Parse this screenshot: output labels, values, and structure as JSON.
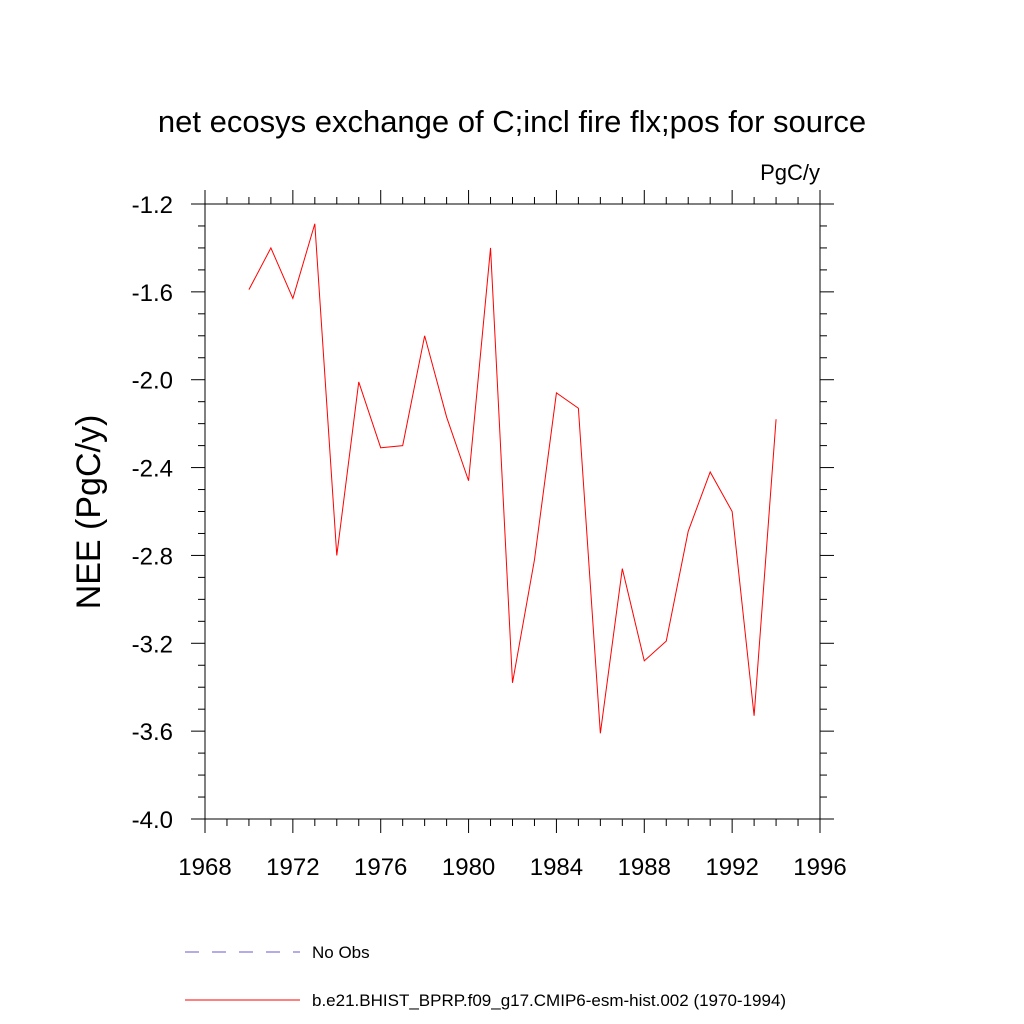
{
  "chart_data": {
    "type": "line",
    "title": "net ecosys exchange of C;incl fire flx;pos for source",
    "units": "PgC/y",
    "ylabel": "NEE  (PgC/y)",
    "xlabel": "",
    "xlim": [
      1968,
      1996
    ],
    "ylim": [
      -4.0,
      -1.2
    ],
    "xticks": [
      1968,
      1972,
      1976,
      1980,
      1984,
      1988,
      1992,
      1996
    ],
    "xtick_labels": [
      "1968",
      "1972",
      "1976",
      "1980",
      "1984",
      "1988",
      "1992",
      "1996"
    ],
    "yticks": [
      -4.0,
      -3.6,
      -3.2,
      -2.8,
      -2.4,
      -2.0,
      -1.6,
      -1.2
    ],
    "ytick_labels": [
      "-4.0",
      "-3.6",
      "-3.2",
      "-2.8",
      "-2.4",
      "-2.0",
      "-1.6",
      "-1.2"
    ],
    "grid": false,
    "series": [
      {
        "name": "b.e21.BHIST_BPRP.f09_g17.CMIP6-esm-hist.002 (1970-1994)",
        "color": "#ff0000",
        "style": "solid",
        "x": [
          1970,
          1971,
          1972,
          1973,
          1974,
          1975,
          1976,
          1977,
          1978,
          1979,
          1980,
          1981,
          1982,
          1983,
          1984,
          1985,
          1986,
          1987,
          1988,
          1989,
          1990,
          1991,
          1992,
          1993,
          1994
        ],
        "values": [
          -1.59,
          -1.4,
          -1.63,
          -1.29,
          -2.8,
          -2.01,
          -2.31,
          -2.3,
          -1.8,
          -2.17,
          -2.46,
          -1.4,
          -3.38,
          -2.82,
          -2.06,
          -2.13,
          -3.61,
          -2.86,
          -3.28,
          -3.19,
          -2.69,
          -2.42,
          -2.6,
          -3.53,
          -2.18
        ]
      }
    ],
    "legend": [
      {
        "label": "No Obs",
        "color": "#6a5acd",
        "style": "dashed"
      },
      {
        "label": "b.e21.BHIST_BPRP.f09_g17.CMIP6-esm-hist.002 (1970-1994)",
        "color": "#ff0000",
        "style": "solid"
      }
    ],
    "legend_position": "bottom"
  }
}
